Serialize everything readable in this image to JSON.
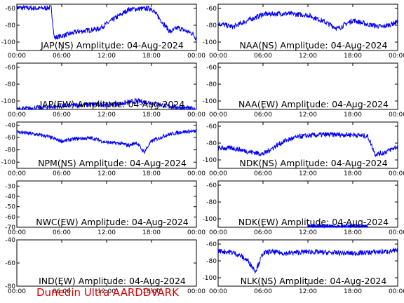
{
  "footer_text": "Dunedin Ultra AARDDVARK",
  "colors": {
    "trace": "#0000ff",
    "footer": "#d40000",
    "axes": "#000000"
  },
  "x_ticks": [
    "00:00",
    "06:00",
    "12:00",
    "18:00",
    "00:00"
  ],
  "chart_data": [
    {
      "type": "line",
      "title": "JAP(NS) Amplitude: 04-Aug-2024",
      "ylim": [
        -110,
        -55
      ],
      "yticks": [
        -100,
        -80,
        -60
      ],
      "series": [
        {
          "x": [
            0,
            3,
            4.6,
            5,
            8,
            11,
            15,
            18,
            20.5,
            21.5,
            23.5,
            24
          ],
          "y": [
            -59,
            -60,
            -59,
            -95,
            -88,
            -84,
            -61,
            -60,
            -88,
            -83,
            -90,
            -96
          ]
        }
      ]
    },
    {
      "type": "line",
      "title": "NAA(NS) Amplitude: 04-Aug-2024",
      "ylim": [
        -110,
        -55
      ],
      "yticks": [
        -100,
        -80,
        -60
      ],
      "series": [
        {
          "x": [
            0,
            2,
            3.5,
            6,
            9,
            12,
            14,
            16,
            18,
            20,
            22,
            24
          ],
          "y": [
            -78,
            -82,
            -76,
            -67,
            -66,
            -68,
            -75,
            -84,
            -74,
            -79,
            -82,
            -76
          ]
        }
      ]
    },
    {
      "type": "line",
      "title": "JAP(EW) Amplitude: 04-Aug-2024",
      "ylim": [
        -110,
        -55
      ],
      "yticks": [
        -100,
        -80,
        -60
      ],
      "series": [
        {
          "x": [
            0,
            3,
            6,
            10,
            12,
            14,
            16,
            18,
            20,
            24
          ],
          "y": [
            -110,
            -108,
            -106,
            -104,
            -104,
            -103,
            -100,
            -102,
            -106,
            -110
          ]
        }
      ]
    },
    {
      "type": "line",
      "title": "NAA(EW) Amplitude: 04-Aug-2024",
      "ylim": [
        -110,
        -55
      ],
      "yticks": [
        -100,
        -80,
        -60
      ],
      "series": []
    },
    {
      "type": "line",
      "title": "NPM(NS) Amplitude: 04-Aug-2024",
      "ylim": [
        -110,
        -35
      ],
      "yticks": [
        -100,
        -80,
        -60,
        -40
      ],
      "series": [
        {
          "x": [
            0,
            2,
            4,
            6,
            8,
            10,
            12,
            14,
            15,
            16,
            17,
            18,
            20,
            22,
            24
          ],
          "y": [
            -51,
            -54,
            -58,
            -66,
            -62,
            -61,
            -68,
            -70,
            -73,
            -68,
            -84,
            -66,
            -56,
            -51,
            -50
          ]
        }
      ]
    },
    {
      "type": "line",
      "title": "NDK(NS) Amplitude: 04-Aug-2024",
      "ylim": [
        -110,
        -55
      ],
      "yticks": [
        -100,
        -80,
        -60
      ],
      "series": [
        {
          "x": [
            0,
            2,
            4,
            6,
            8,
            9,
            11,
            14,
            18,
            20,
            21,
            22,
            24
          ],
          "y": [
            -86,
            -86,
            -90,
            -93,
            -82,
            -77,
            -72,
            -70,
            -70,
            -72,
            -93,
            -92,
            -84
          ]
        }
      ]
    },
    {
      "type": "line",
      "title": "NWC(EW) Amplitude: 04-Aug-2024",
      "ylim": [
        -70,
        -25
      ],
      "yticks": [
        -70,
        -60,
        -50,
        -40,
        -30
      ],
      "series": []
    },
    {
      "type": "line",
      "title": "NDK(EW) Amplitude: 04-Aug-2024",
      "ylim": [
        -110,
        -55
      ],
      "yticks": [
        -100,
        -80,
        -60
      ],
      "series": [
        {
          "x": [
            12,
            14,
            16,
            18,
            20
          ],
          "y": [
            -110,
            -109,
            -110,
            -109,
            -110
          ]
        }
      ]
    },
    {
      "type": "line",
      "title": "IND(EW) Amplitude: 04-Aug-2024",
      "ylim": [
        -80,
        -40
      ],
      "yticks": [
        -80,
        -60,
        -40
      ],
      "series": []
    },
    {
      "type": "line",
      "title": "NLK(NS) Amplitude: 04-Aug-2024",
      "ylim": [
        -110,
        -55
      ],
      "yticks": [
        -100,
        -80,
        -60
      ],
      "series": [
        {
          "x": [
            0,
            2,
            3,
            4,
            5,
            6,
            7,
            9,
            12,
            14,
            18,
            20,
            22,
            24
          ],
          "y": [
            -68,
            -70,
            -74,
            -80,
            -92,
            -71,
            -69,
            -71,
            -69,
            -70,
            -71,
            -70,
            -69,
            -68
          ]
        }
      ]
    }
  ]
}
